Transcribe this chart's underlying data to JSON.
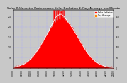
{
  "title": "Solar PV/Inverter Performance Solar Radiation & Day Average per Minute",
  "title_fontsize": 3.2,
  "bg_color": "#c8c8c8",
  "plot_bg_color": "#c8c8c8",
  "grid_color": "#aaaaff",
  "grid_style": "--",
  "ylim": [
    0,
    280
  ],
  "xlim": [
    0,
    1440
  ],
  "legend_entries": [
    "Solar Radiation",
    "Day Average"
  ],
  "legend_colors": [
    "#ff0000",
    "#ff8800"
  ],
  "area_color": "#ff0000",
  "avg_line_color": "#ff8800",
  "tick_fontsize": 2.2,
  "ytick_right": [
    0,
    50,
    100,
    150,
    200,
    250
  ],
  "ytick_left": [
    50,
    100,
    150,
    200,
    250
  ],
  "xtick_step_min": 120
}
